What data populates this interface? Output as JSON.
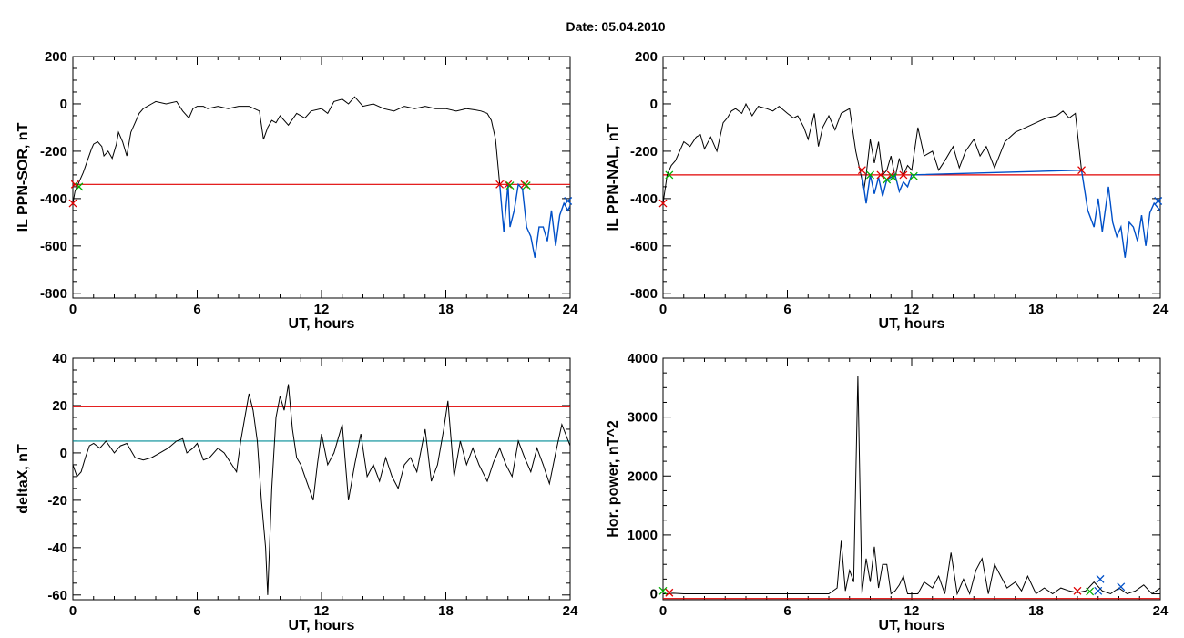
{
  "figure": {
    "title": "Date:  05.04.2010"
  },
  "chart_data": [
    {
      "type": "line",
      "xlabel": "UT, hours",
      "ylabel": "IL PPN-SOR, nT",
      "xlim": [
        0,
        24
      ],
      "ylim": [
        -820,
        200
      ],
      "xticks": [
        0,
        6,
        12,
        18,
        24
      ],
      "yticks": [
        -800,
        -600,
        -400,
        -200,
        0,
        200
      ],
      "threshold": {
        "value": -340,
        "color": "#e00000"
      },
      "series": [
        {
          "color": "#000000",
          "x": [
            0,
            0.1,
            0.2,
            0.3,
            0.5,
            0.7,
            0.9,
            1.0,
            1.2,
            1.4,
            1.5,
            1.7,
            1.9,
            2.1,
            2.2,
            2.4,
            2.6,
            2.8,
            3.0,
            3.2,
            3.4,
            3.6,
            3.8,
            4.0,
            4.5,
            5.0,
            5.3,
            5.6,
            5.8,
            6.0,
            6.3,
            6.5,
            7.0,
            7.5,
            8.0,
            8.5,
            9.0,
            9.2,
            9.4,
            9.6,
            9.8,
            10.0,
            10.4,
            10.8,
            11.2,
            11.5,
            12.0,
            12.3,
            12.6,
            13.0,
            13.3,
            13.6,
            14.0,
            14.5,
            15.0,
            15.5,
            16.0,
            16.5,
            17.0,
            17.5,
            18.0,
            18.5,
            19.0,
            19.4,
            19.7,
            20.0,
            20.2,
            20.4,
            20.6
          ],
          "y": [
            -420,
            -370,
            -350,
            -330,
            -290,
            -240,
            -190,
            -170,
            -160,
            -180,
            -220,
            -200,
            -230,
            -170,
            -120,
            -160,
            -220,
            -120,
            -80,
            -40,
            -20,
            -10,
            0,
            10,
            0,
            10,
            -30,
            -60,
            -20,
            -10,
            -10,
            -20,
            -10,
            -20,
            -10,
            -10,
            -30,
            -150,
            -100,
            -70,
            -80,
            -50,
            -90,
            -40,
            -60,
            -30,
            -20,
            -40,
            10,
            20,
            0,
            30,
            -10,
            0,
            -20,
            -30,
            -10,
            -20,
            -10,
            -20,
            -20,
            -30,
            -20,
            -25,
            -30,
            -40,
            -70,
            -150,
            -340
          ]
        },
        {
          "color": "#0050c8",
          "x": [
            20.6,
            20.8,
            21.0,
            21.1,
            21.3,
            21.5,
            21.7,
            21.9,
            22.1,
            22.3,
            22.5,
            22.7,
            22.9,
            23.1,
            23.3,
            23.5,
            23.7,
            23.9,
            24.0
          ],
          "y": [
            -340,
            -540,
            -340,
            -520,
            -450,
            -340,
            -360,
            -520,
            -560,
            -650,
            -520,
            -520,
            -580,
            -450,
            -600,
            -470,
            -420,
            -450,
            -430
          ]
        }
      ],
      "markers": [
        {
          "x": 0.0,
          "y": -420,
          "color": "#e00000"
        },
        {
          "x": 0.1,
          "y": -340,
          "color": "#e00000"
        },
        {
          "x": 0.3,
          "y": -350,
          "color": "#00b000"
        },
        {
          "x": 20.6,
          "y": -340,
          "color": "#e00000"
        },
        {
          "x": 21.0,
          "y": -340,
          "color": "#e00000"
        },
        {
          "x": 21.1,
          "y": -345,
          "color": "#00b000"
        },
        {
          "x": 21.8,
          "y": -340,
          "color": "#e00000"
        },
        {
          "x": 21.9,
          "y": -345,
          "color": "#00b000"
        },
        {
          "x": 23.9,
          "y": -410,
          "color": "#0050c8"
        }
      ]
    },
    {
      "type": "line",
      "xlabel": "UT, hours",
      "ylabel": "IL PPN-NAL, nT",
      "xlim": [
        0,
        24
      ],
      "ylim": [
        -820,
        200
      ],
      "xticks": [
        0,
        6,
        12,
        18,
        24
      ],
      "yticks": [
        -800,
        -600,
        -400,
        -200,
        0,
        200
      ],
      "threshold": {
        "value": -300,
        "color": "#e00000"
      },
      "series": [
        {
          "color": "#000000",
          "x": [
            0,
            0.2,
            0.4,
            0.6,
            0.8,
            1.0,
            1.3,
            1.6,
            1.8,
            2.0,
            2.3,
            2.6,
            2.9,
            3.1,
            3.3,
            3.5,
            3.8,
            4.0,
            4.3,
            4.6,
            5.0,
            5.3,
            5.6,
            6.0,
            6.3,
            6.5,
            6.8,
            7.0,
            7.3,
            7.5,
            7.7,
            8.0,
            8.3,
            8.6,
            9.0,
            9.3,
            9.5,
            9.7,
            9.8,
            10.0,
            10.2,
            10.4,
            10.6,
            10.8,
            11.0,
            11.2,
            11.4,
            11.6,
            11.8,
            12.0,
            12.3,
            12.6,
            13.0,
            13.3,
            13.6,
            14.0,
            14.3,
            14.6,
            15.0,
            15.3,
            15.6,
            16.0,
            16.5,
            17.0,
            17.5,
            18.0,
            18.5,
            19.0,
            19.3,
            19.6,
            19.9,
            20.2
          ],
          "y": [
            -420,
            -300,
            -260,
            -240,
            -200,
            -160,
            -180,
            -140,
            -130,
            -190,
            -140,
            -200,
            -80,
            -60,
            -30,
            -20,
            -40,
            0,
            -50,
            -10,
            -20,
            -30,
            -10,
            -40,
            -60,
            -50,
            -100,
            -150,
            -40,
            -180,
            -100,
            -50,
            -110,
            -40,
            -20,
            -200,
            -280,
            -360,
            -300,
            -150,
            -250,
            -160,
            -300,
            -280,
            -220,
            -310,
            -230,
            -300,
            -260,
            -280,
            -100,
            -220,
            -200,
            -280,
            -240,
            -180,
            -270,
            -200,
            -150,
            -220,
            -180,
            -270,
            -160,
            -120,
            -100,
            -80,
            -60,
            -50,
            -30,
            -60,
            -40,
            -280
          ]
        },
        {
          "color": "#0050c8",
          "x": [
            9.6,
            9.8,
            10.0,
            10.2,
            10.4,
            10.6,
            10.8,
            11.0,
            11.2,
            11.4,
            11.6,
            11.8,
            12.0,
            20.2,
            20.5,
            20.8,
            21.0,
            21.2,
            21.5,
            21.7,
            21.9,
            22.1,
            22.3,
            22.5,
            22.7,
            22.9,
            23.1,
            23.3,
            23.5,
            23.7,
            23.9,
            24.0
          ],
          "y": [
            -300,
            -420,
            -300,
            -380,
            -310,
            -390,
            -320,
            -310,
            -300,
            -370,
            -330,
            -350,
            -300,
            -280,
            -450,
            -520,
            -400,
            -540,
            -350,
            -500,
            -560,
            -520,
            -650,
            -500,
            -520,
            -580,
            -470,
            -600,
            -460,
            -420,
            -440,
            -450
          ]
        }
      ],
      "markers": [
        {
          "x": 0.0,
          "y": -420,
          "color": "#e00000"
        },
        {
          "x": 0.3,
          "y": -300,
          "color": "#00b000"
        },
        {
          "x": 9.6,
          "y": -280,
          "color": "#e00000"
        },
        {
          "x": 10.0,
          "y": -300,
          "color": "#00b000"
        },
        {
          "x": 10.5,
          "y": -300,
          "color": "#e00000"
        },
        {
          "x": 10.8,
          "y": -320,
          "color": "#00b000"
        },
        {
          "x": 11.0,
          "y": -300,
          "color": "#e00000"
        },
        {
          "x": 11.1,
          "y": -310,
          "color": "#00b000"
        },
        {
          "x": 11.6,
          "y": -300,
          "color": "#e00000"
        },
        {
          "x": 12.1,
          "y": -305,
          "color": "#00b000"
        },
        {
          "x": 20.2,
          "y": -280,
          "color": "#e00000"
        },
        {
          "x": 23.9,
          "y": -410,
          "color": "#0050c8"
        }
      ]
    },
    {
      "type": "line",
      "xlabel": "UT, hours",
      "ylabel": "deltaX, nT",
      "xlim": [
        0,
        24
      ],
      "ylim": [
        -62,
        40
      ],
      "xticks": [
        0,
        6,
        12,
        18,
        24
      ],
      "yticks": [
        -60,
        -40,
        -20,
        0,
        20,
        40
      ],
      "thresholds": [
        {
          "value": 19.5,
          "color": "#e00000"
        },
        {
          "value": 5,
          "color": "#008c96"
        }
      ],
      "series": [
        {
          "color": "#000000",
          "x": [
            0,
            0.2,
            0.4,
            0.6,
            0.8,
            1.0,
            1.3,
            1.6,
            2.0,
            2.3,
            2.6,
            3.0,
            3.4,
            3.8,
            4.2,
            4.6,
            5.0,
            5.3,
            5.5,
            5.8,
            6.0,
            6.3,
            6.6,
            7.0,
            7.3,
            7.6,
            7.9,
            8.1,
            8.3,
            8.5,
            8.7,
            8.9,
            9.1,
            9.3,
            9.4,
            9.6,
            9.8,
            10.0,
            10.2,
            10.4,
            10.6,
            10.8,
            11.0,
            11.2,
            11.4,
            11.6,
            11.8,
            12.0,
            12.3,
            12.6,
            13.0,
            13.3,
            13.6,
            13.9,
            14.2,
            14.5,
            14.8,
            15.1,
            15.4,
            15.7,
            16.0,
            16.3,
            16.6,
            17.0,
            17.3,
            17.6,
            17.9,
            18.1,
            18.4,
            18.7,
            19.0,
            19.3,
            19.6,
            20.0,
            20.3,
            20.6,
            20.9,
            21.2,
            21.5,
            21.8,
            22.1,
            22.4,
            22.7,
            23.0,
            23.3,
            23.6,
            24.0
          ],
          "y": [
            -5,
            -10,
            -8,
            -2,
            3,
            4,
            2,
            5,
            0,
            3,
            4,
            -2,
            -3,
            -2,
            0,
            2,
            5,
            6,
            0,
            2,
            4,
            -3,
            -2,
            2,
            0,
            -4,
            -8,
            5,
            15,
            25,
            18,
            5,
            -20,
            -40,
            -60,
            -15,
            15,
            24,
            18,
            29,
            10,
            -2,
            -5,
            -10,
            -15,
            -20,
            -5,
            8,
            -5,
            0,
            12,
            -20,
            -5,
            8,
            -10,
            -5,
            -12,
            -2,
            -10,
            -15,
            -5,
            -2,
            -8,
            10,
            -12,
            -5,
            10,
            22,
            -10,
            5,
            -5,
            2,
            -5,
            -12,
            -4,
            2,
            -5,
            -10,
            5,
            -2,
            -8,
            2,
            -5,
            -13,
            0,
            12,
            3
          ]
        }
      ]
    },
    {
      "type": "line",
      "xlabel": "UT, hours",
      "ylabel": "Hor. power, nT^2",
      "xlim": [
        0,
        24
      ],
      "ylim": [
        -100,
        4000
      ],
      "xticks": [
        0,
        6,
        12,
        18,
        24
      ],
      "yticks": [
        0,
        1000,
        2000,
        3000,
        4000
      ],
      "threshold": {
        "value": -80,
        "color": "#e00000"
      },
      "series": [
        {
          "color": "#000000",
          "x": [
            0,
            0.5,
            1.0,
            2.0,
            3.0,
            4.0,
            5.0,
            6.0,
            7.0,
            8.0,
            8.4,
            8.6,
            8.8,
            9.0,
            9.2,
            9.4,
            9.6,
            9.8,
            10.0,
            10.2,
            10.4,
            10.6,
            10.8,
            11.0,
            11.2,
            11.4,
            11.6,
            11.8,
            12.0,
            12.3,
            12.6,
            13.0,
            13.3,
            13.6,
            13.9,
            14.2,
            14.5,
            14.8,
            15.1,
            15.4,
            15.7,
            16.0,
            16.3,
            16.6,
            17.0,
            17.3,
            17.6,
            18.0,
            18.4,
            18.8,
            19.2,
            19.6,
            20.0,
            20.4,
            20.8,
            21.2,
            21.6,
            22.0,
            22.4,
            22.8,
            23.2,
            23.6,
            24.0
          ],
          "y": [
            0,
            10,
            0,
            0,
            0,
            0,
            0,
            0,
            0,
            0,
            100,
            900,
            50,
            400,
            200,
            3700,
            0,
            600,
            200,
            800,
            100,
            500,
            500,
            0,
            50,
            150,
            300,
            0,
            0,
            0,
            200,
            100,
            300,
            0,
            700,
            0,
            250,
            0,
            400,
            600,
            0,
            500,
            300,
            100,
            200,
            50,
            300,
            0,
            100,
            0,
            100,
            50,
            20,
            50,
            200,
            50,
            0,
            100,
            0,
            50,
            150,
            0,
            100
          ]
        }
      ],
      "markers": [
        {
          "x": 0.0,
          "y": 50,
          "color": "#00b000"
        },
        {
          "x": 0.3,
          "y": 20,
          "color": "#e00000"
        },
        {
          "x": 20.0,
          "y": 50,
          "color": "#e00000"
        },
        {
          "x": 20.6,
          "y": 40,
          "color": "#00b000"
        },
        {
          "x": 21.0,
          "y": 50,
          "color": "#0050c8"
        },
        {
          "x": 21.1,
          "y": 250,
          "color": "#0050c8"
        },
        {
          "x": 22.1,
          "y": 120,
          "color": "#0050c8"
        }
      ]
    }
  ]
}
